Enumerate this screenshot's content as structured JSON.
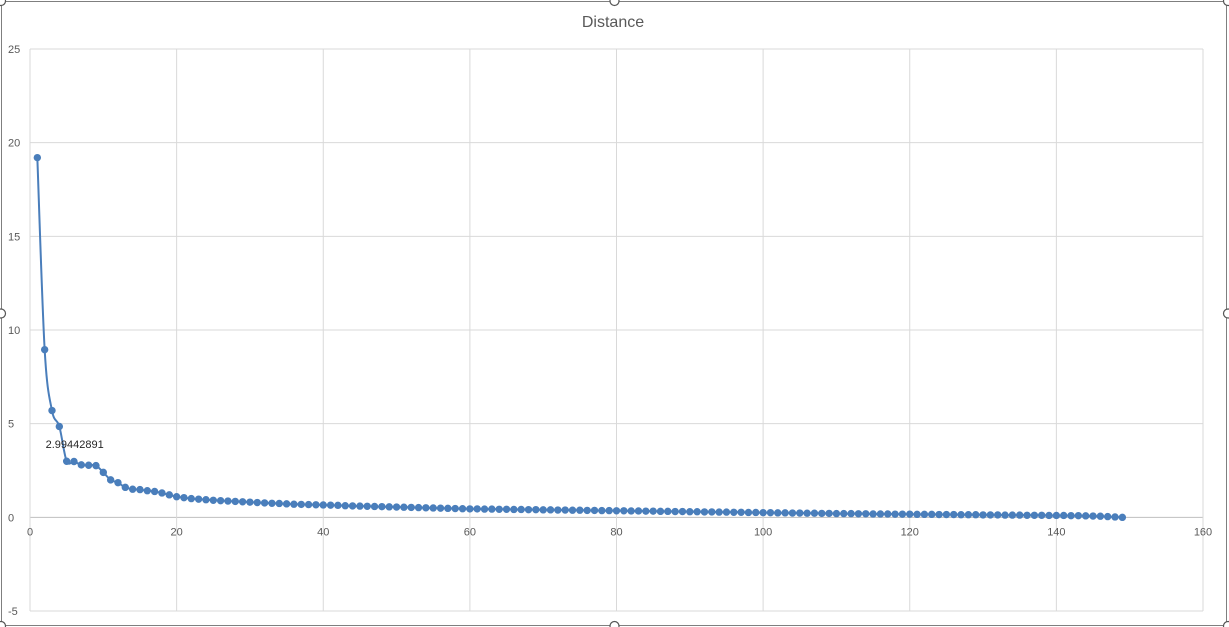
{
  "chart_data": {
    "type": "scatter",
    "title": "Distance",
    "xlabel": "",
    "ylabel": "",
    "xlim": [
      0,
      160
    ],
    "ylim": [
      -5,
      25
    ],
    "x_ticks": [
      0,
      20,
      40,
      60,
      80,
      100,
      120,
      140,
      160
    ],
    "y_ticks": [
      -5,
      0,
      5,
      10,
      15,
      20,
      25
    ],
    "grid": true,
    "legend": "none",
    "smooth_line": true,
    "series": [
      {
        "name": "Distance",
        "color": "#4a7ebb",
        "x": [
          1,
          2,
          3,
          4,
          5,
          6,
          7,
          8,
          9,
          10,
          11,
          12,
          13,
          14,
          15,
          16,
          17,
          18,
          19,
          20,
          21,
          22,
          23,
          24,
          25,
          26,
          27,
          28,
          29,
          30,
          31,
          32,
          33,
          34,
          35,
          36,
          37,
          38,
          39,
          40,
          41,
          42,
          43,
          44,
          45,
          46,
          47,
          48,
          49,
          50,
          51,
          52,
          53,
          54,
          55,
          56,
          57,
          58,
          59,
          60,
          61,
          62,
          63,
          64,
          65,
          66,
          67,
          68,
          69,
          70,
          71,
          72,
          73,
          74,
          75,
          76,
          77,
          78,
          79,
          80,
          81,
          82,
          83,
          84,
          85,
          86,
          87,
          88,
          89,
          90,
          91,
          92,
          93,
          94,
          95,
          96,
          97,
          98,
          99,
          100,
          101,
          102,
          103,
          104,
          105,
          106,
          107,
          108,
          109,
          110,
          111,
          112,
          113,
          114,
          115,
          116,
          117,
          118,
          119,
          120,
          121,
          122,
          123,
          124,
          125,
          126,
          127,
          128,
          129,
          130,
          131,
          132,
          133,
          134,
          135,
          136,
          137,
          138,
          139,
          140,
          141,
          142,
          143,
          144,
          145,
          146,
          147,
          148,
          149
        ],
        "y": [
          19.2,
          8.95,
          5.7,
          4.85,
          2.99442891,
          2.98,
          2.8,
          2.78,
          2.76,
          2.4,
          2.0,
          1.85,
          1.6,
          1.5,
          1.48,
          1.42,
          1.38,
          1.3,
          1.2,
          1.1,
          1.05,
          1.0,
          0.97,
          0.94,
          0.91,
          0.89,
          0.87,
          0.85,
          0.83,
          0.81,
          0.79,
          0.77,
          0.75,
          0.74,
          0.72,
          0.7,
          0.69,
          0.68,
          0.67,
          0.66,
          0.65,
          0.64,
          0.62,
          0.61,
          0.6,
          0.59,
          0.58,
          0.57,
          0.56,
          0.55,
          0.54,
          0.53,
          0.52,
          0.51,
          0.5,
          0.49,
          0.48,
          0.47,
          0.46,
          0.45,
          0.45,
          0.44,
          0.44,
          0.43,
          0.43,
          0.42,
          0.42,
          0.41,
          0.41,
          0.4,
          0.4,
          0.39,
          0.39,
          0.38,
          0.38,
          0.37,
          0.37,
          0.36,
          0.36,
          0.35,
          0.35,
          0.34,
          0.34,
          0.33,
          0.33,
          0.32,
          0.32,
          0.31,
          0.31,
          0.3,
          0.3,
          0.29,
          0.29,
          0.28,
          0.28,
          0.27,
          0.27,
          0.26,
          0.26,
          0.25,
          0.25,
          0.24,
          0.24,
          0.23,
          0.23,
          0.22,
          0.22,
          0.21,
          0.21,
          0.2,
          0.2,
          0.2,
          0.19,
          0.19,
          0.18,
          0.18,
          0.18,
          0.17,
          0.17,
          0.17,
          0.16,
          0.16,
          0.16,
          0.15,
          0.15,
          0.15,
          0.14,
          0.14,
          0.14,
          0.13,
          0.13,
          0.13,
          0.12,
          0.12,
          0.12,
          0.11,
          0.11,
          0.11,
          0.1,
          0.1,
          0.1,
          0.09,
          0.09,
          0.08,
          0.07,
          0.06,
          0.04,
          0.02,
          0.0
        ]
      }
    ],
    "annotations": [
      {
        "series": 0,
        "point_index": 4,
        "text": "2.99442891"
      }
    ]
  }
}
